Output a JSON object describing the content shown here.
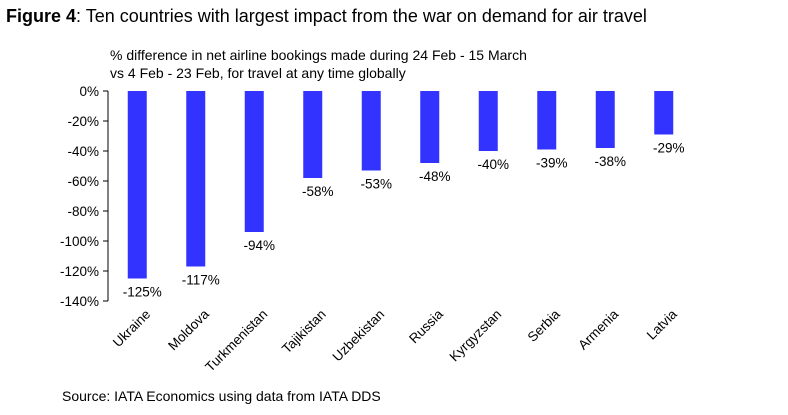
{
  "figure": {
    "label": "Figure 4",
    "title_rest": ": Ten countries with largest impact from the war on demand for air travel"
  },
  "subtitle_lines": [
    "% difference in net airline bookings made during 24 Feb - 15 March",
    "vs 4 Feb - 23 Feb, for travel at any time globally"
  ],
  "source": "Source: IATA Economics using data from IATA DDS",
  "chart_data": {
    "type": "bar",
    "categories": [
      "Ukraine",
      "Moldova",
      "Turkmenistan",
      "Tajikistan",
      "Uzbekistan",
      "Russia",
      "Kyrgyzstan",
      "Serbia",
      "Armenia",
      "Latvia"
    ],
    "values": [
      -125,
      -117,
      -94,
      -58,
      -53,
      -48,
      -40,
      -39,
      -38,
      -29
    ],
    "data_labels": [
      "-125%",
      "-117%",
      "-94%",
      "-58%",
      "-53%",
      "-48%",
      "-40%",
      "-39%",
      "-38%",
      "-29%"
    ],
    "ylim": [
      -140,
      0
    ],
    "yticks": [
      0,
      -20,
      -40,
      -60,
      -80,
      -100,
      -120,
      -140
    ],
    "ytick_labels": [
      "0%",
      "-20%",
      "-40%",
      "-60%",
      "-80%",
      "-100%",
      "-120%",
      "-140%"
    ],
    "bar_color": "#3333ff",
    "grid": false,
    "legend": "none"
  }
}
